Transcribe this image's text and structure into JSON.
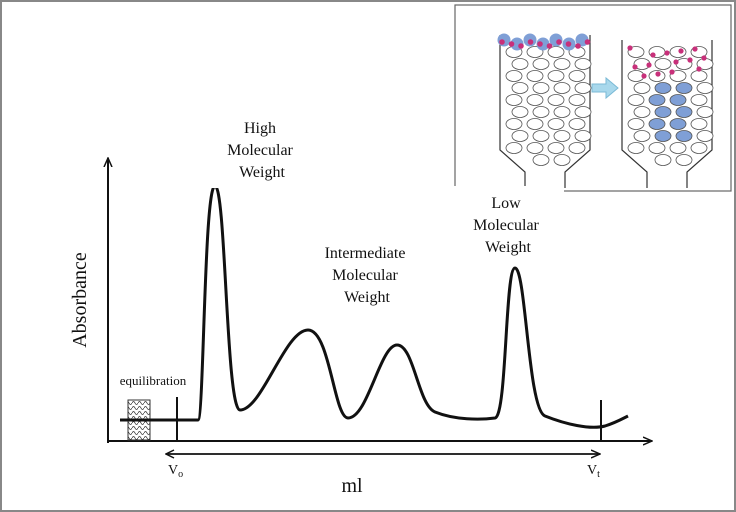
{
  "peaks": [
    {
      "lines": [
        "High",
        "Molecular",
        "Weight"
      ]
    },
    {
      "lines": [
        "Intermediate",
        "Molecular",
        "Weight"
      ]
    },
    {
      "lines": [
        "Low",
        "Molecular",
        "Weight"
      ]
    }
  ],
  "y_axis_label": "Absorbance",
  "x_axis_label": "ml",
  "equilibration_label": "equilibration",
  "void_volume": {
    "label": "V",
    "subscript": "o"
  },
  "total_volume": {
    "label": "V",
    "subscript": "t"
  }
}
